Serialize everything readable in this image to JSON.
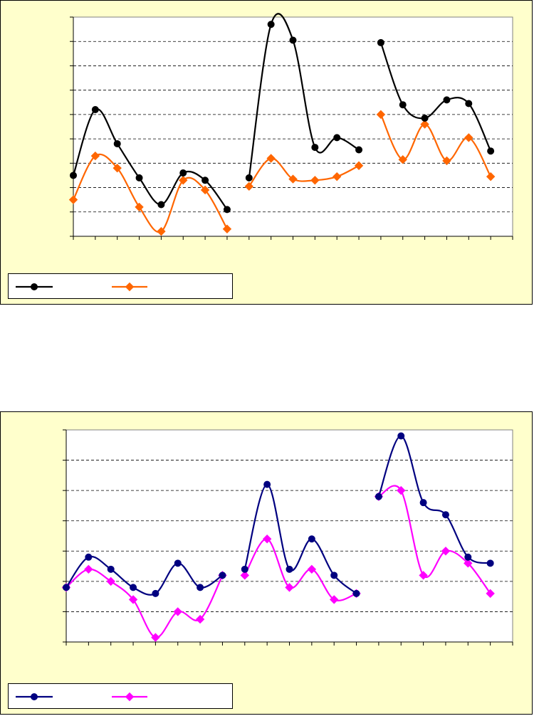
{
  "charts": [
    {
      "chart_data": {
        "type": "line",
        "grid": true,
        "smooth": true,
        "ylim": [
          0,
          9
        ],
        "y_tick_count": 10,
        "x_tick_count": 20,
        "segments": [
          {
            "start_index": 0,
            "series": [
              {
                "name": "",
                "color": "#000000",
                "marker": "circle",
                "values": [
                  2.5,
                  5.2,
                  3.8,
                  2.4,
                  1.3,
                  2.6,
                  2.3,
                  1.1
                ]
              },
              {
                "name": "",
                "color": "#ff6600",
                "marker": "diamond",
                "values": [
                  1.5,
                  3.3,
                  2.8,
                  1.2,
                  0.2,
                  2.3,
                  1.9,
                  0.3
                ]
              }
            ]
          },
          {
            "start_index": 8,
            "series": [
              {
                "name": "",
                "color": "#000000",
                "marker": "circle",
                "values": [
                  2.4,
                  8.7,
                  8.05,
                  3.65,
                  4.05,
                  3.55
                ]
              },
              {
                "name": "",
                "color": "#ff6600",
                "marker": "diamond",
                "values": [
                  2.05,
                  3.2,
                  2.35,
                  2.3,
                  2.45,
                  2.9
                ]
              }
            ]
          },
          {
            "start_index": 14,
            "series": [
              {
                "name": "",
                "color": "#000000",
                "marker": "circle",
                "values": [
                  7.95,
                  5.4,
                  4.85,
                  5.6,
                  5.45,
                  3.5
                ]
              },
              {
                "name": "",
                "color": "#ff6600",
                "marker": "diamond",
                "values": [
                  5.0,
                  3.15,
                  4.6,
                  3.1,
                  4.05,
                  2.45
                ]
              }
            ]
          }
        ],
        "legend": {
          "position": "bottom-left",
          "entries": [
            "",
            ""
          ]
        }
      }
    },
    {
      "chart_data": {
        "type": "line",
        "grid": true,
        "smooth": true,
        "ylim": [
          0,
          7
        ],
        "y_tick_count": 8,
        "x_tick_count": 20,
        "segments": [
          {
            "start_index": 0,
            "series": [
              {
                "name": "",
                "color": "#000080",
                "marker": "circle",
                "values": [
                  1.8,
                  2.8,
                  2.4,
                  1.8,
                  1.6,
                  2.6,
                  1.8,
                  2.2
                ]
              },
              {
                "name": "",
                "color": "#ff00ff",
                "marker": "diamond",
                "values": [
                  1.8,
                  2.4,
                  2.0,
                  1.4,
                  0.15,
                  1.0,
                  0.75,
                  2.2
                ]
              }
            ]
          },
          {
            "start_index": 8,
            "series": [
              {
                "name": "",
                "color": "#000080",
                "marker": "circle",
                "values": [
                  2.4,
                  5.2,
                  2.4,
                  3.4,
                  2.2,
                  1.6
                ]
              },
              {
                "name": "",
                "color": "#ff00ff",
                "marker": "diamond",
                "values": [
                  2.2,
                  3.4,
                  1.8,
                  2.4,
                  1.4,
                  1.6
                ]
              }
            ]
          },
          {
            "start_index": 14,
            "series": [
              {
                "name": "",
                "color": "#000080",
                "marker": "circle",
                "values": [
                  4.8,
                  6.8,
                  4.6,
                  4.2,
                  2.8,
                  2.6
                ]
              },
              {
                "name": "",
                "color": "#ff00ff",
                "marker": "diamond",
                "values": [
                  4.8,
                  5.0,
                  2.2,
                  3.0,
                  2.6,
                  1.6
                ]
              }
            ]
          }
        ],
        "legend": {
          "position": "bottom-left",
          "entries": [
            "",
            ""
          ]
        }
      }
    }
  ]
}
